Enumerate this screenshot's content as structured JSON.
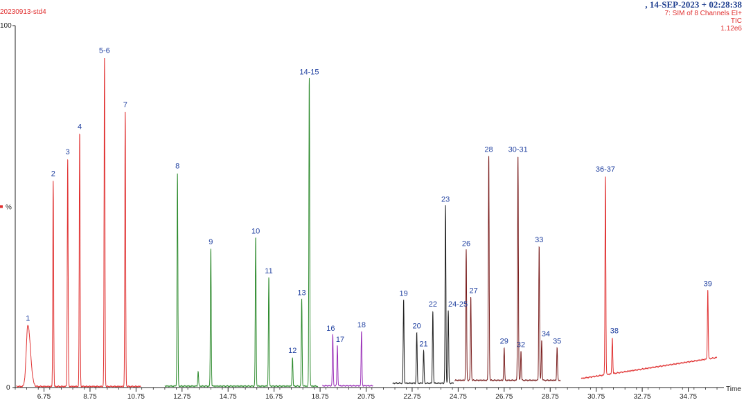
{
  "header": {
    "sample_name": "20230913-std4",
    "date_time": ", 14-SEP-2023 + 02:28:38",
    "function": "7: SIM of 8 Channels EI+",
    "trace": "TIC",
    "intensity": "1.12e6"
  },
  "chart_data": {
    "type": "line",
    "xlabel": "Time",
    "ylabel": "%",
    "xlim": [
      5.5,
      36.3
    ],
    "ylim": [
      0,
      100
    ],
    "y_ticks": [
      "0",
      "100"
    ],
    "x_ticks": [
      "6.75",
      "8.75",
      "10.75",
      "12.75",
      "14.75",
      "16.75",
      "18.75",
      "20.75",
      "22.75",
      "24.75",
      "26.75",
      "28.75",
      "30.75",
      "32.75",
      "34.75"
    ],
    "x_tick_values": [
      6.75,
      8.75,
      10.75,
      12.75,
      14.75,
      16.75,
      18.75,
      20.75,
      22.75,
      24.75,
      26.75,
      28.75,
      30.75,
      32.75,
      34.75
    ],
    "segments": [
      {
        "color": "#e03030",
        "range": [
          5.55,
          10.95
        ],
        "baseline": 0.3,
        "peaks": [
          {
            "label": "1",
            "rt": 6.05,
            "height": 17
          },
          {
            "label": "2",
            "rt": 7.15,
            "height": 57
          },
          {
            "label": "3",
            "rt": 7.78,
            "height": 63
          },
          {
            "label": "4",
            "rt": 8.3,
            "height": 70
          },
          {
            "label": "5-6",
            "rt": 9.38,
            "height": 91
          },
          {
            "label": "7",
            "rt": 10.28,
            "height": 76
          }
        ]
      },
      {
        "color": "#2e8b2e",
        "range": [
          12.0,
          18.65
        ],
        "baseline": 0.4,
        "peaks": [
          {
            "label": "8",
            "rt": 12.55,
            "height": 59
          },
          {
            "label": "",
            "rt": 13.45,
            "height": 4
          },
          {
            "label": "9",
            "rt": 14.0,
            "height": 38
          },
          {
            "label": "10",
            "rt": 15.95,
            "height": 41
          },
          {
            "label": "11",
            "rt": 16.52,
            "height": 30
          },
          {
            "label": "12",
            "rt": 17.55,
            "height": 8
          },
          {
            "label": "13",
            "rt": 17.95,
            "height": 24
          },
          {
            "label": "14-15",
            "rt": 18.28,
            "height": 85
          }
        ]
      },
      {
        "color": "#9a30b8",
        "range": [
          18.85,
          21.05
        ],
        "baseline": 0.5,
        "peaks": [
          {
            "label": "16",
            "rt": 19.3,
            "height": 14
          },
          {
            "label": "17",
            "rt": 19.5,
            "height": 11
          },
          {
            "label": "18",
            "rt": 20.55,
            "height": 15
          }
        ]
      },
      {
        "color": "#202020",
        "range": [
          21.9,
          24.55
        ],
        "baseline": 1.2,
        "peaks": [
          {
            "label": "19",
            "rt": 22.38,
            "height": 23
          },
          {
            "label": "20",
            "rt": 22.95,
            "height": 14
          },
          {
            "label": "21",
            "rt": 23.25,
            "height": 9
          },
          {
            "label": "22",
            "rt": 23.65,
            "height": 20
          },
          {
            "label": "23",
            "rt": 24.2,
            "height": 49
          },
          {
            "label": "24-25",
            "rt": 24.32,
            "height": 20
          }
        ]
      },
      {
        "color": "#7a1e1e",
        "range": [
          24.6,
          29.2
        ],
        "baseline": 2,
        "peaks": [
          {
            "label": "26",
            "rt": 25.1,
            "height": 36
          },
          {
            "label": "27",
            "rt": 25.3,
            "height": 23
          },
          {
            "label": "28",
            "rt": 26.08,
            "height": 62
          },
          {
            "label": "29",
            "rt": 26.75,
            "height": 9
          },
          {
            "label": "30-31",
            "rt": 27.35,
            "height": 62
          },
          {
            "label": "32",
            "rt": 27.48,
            "height": 8
          },
          {
            "label": "33",
            "rt": 28.27,
            "height": 37
          },
          {
            "label": "34",
            "rt": 28.38,
            "height": 11
          },
          {
            "label": "35",
            "rt": 29.05,
            "height": 9
          }
        ]
      },
      {
        "color": "#e03030",
        "range": [
          30.1,
          36.0
        ],
        "baseline": 2.5,
        "baseline_end": 8.3,
        "peaks": [
          {
            "label": "36-37",
            "rt": 31.15,
            "height": 55
          },
          {
            "label": "38",
            "rt": 31.45,
            "height": 10
          },
          {
            "label": "39",
            "rt": 35.6,
            "height": 19
          }
        ]
      }
    ]
  }
}
